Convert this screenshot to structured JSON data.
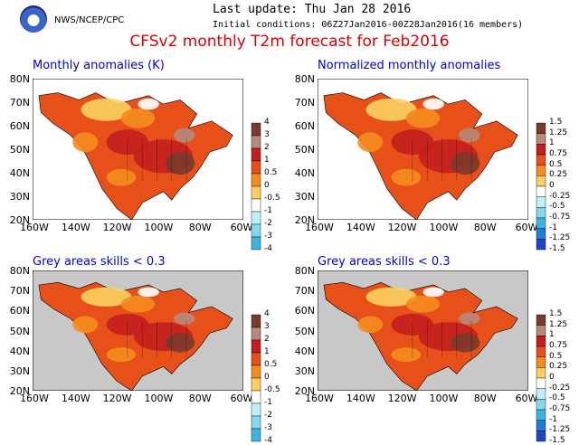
{
  "header": {
    "agency": "NWS/NCEP/CPC",
    "last_update": "Last update: Thu Jan 28 2016",
    "initial_conditions": "Initial conditions: 06Z27Jan2016-00Z28Jan2016(16 members)",
    "title": "CFSv2 monthly T2m forecast for Feb2016",
    "logo_icon": "noaa-logo-icon"
  },
  "axes": {
    "lat_labels": [
      "80N",
      "70N",
      "60N",
      "50N",
      "40N",
      "30N",
      "20N"
    ],
    "lon_labels": [
      "160W",
      "140W",
      "120W",
      "100W",
      "80W",
      "60W"
    ]
  },
  "colorbars": {
    "anomaly_labels": [
      "4",
      "3",
      "2",
      "1",
      "0.5",
      "0",
      "-0.5",
      "-1",
      "-2",
      "-3",
      "-4"
    ],
    "normalized_labels": [
      "1.5",
      "1.25",
      "1",
      "0.75",
      "0.5",
      "0.25",
      "0",
      "-0.25",
      "-0.5",
      "-0.75",
      "-1",
      "-1.25",
      "-1.5"
    ],
    "colors_warm": [
      "#7a3a2e",
      "#b48a7e",
      "#c41e1e",
      "#e8501a",
      "#f48c1e",
      "#fbd060"
    ],
    "colors_cool": [
      "#bff0f7",
      "#86d8ee",
      "#3cb4e0",
      "#1e7ed2",
      "#1e46c8",
      "#3219a0"
    ],
    "neutral": "#ffffff"
  },
  "panels": [
    {
      "title": "Monthly anomalies (K)",
      "masked": false
    },
    {
      "title": "Normalized monthly anomalies",
      "masked": false
    },
    {
      "title": "Grey areas skills < 0.3",
      "masked": true
    },
    {
      "title": "Grey areas skills < 0.3",
      "masked": true
    }
  ],
  "colors": {
    "ocean": "#ffffff",
    "mask_grey": "#c8c8c8",
    "title_red": "#e00000",
    "panel_title_blue": "#0000e0"
  }
}
